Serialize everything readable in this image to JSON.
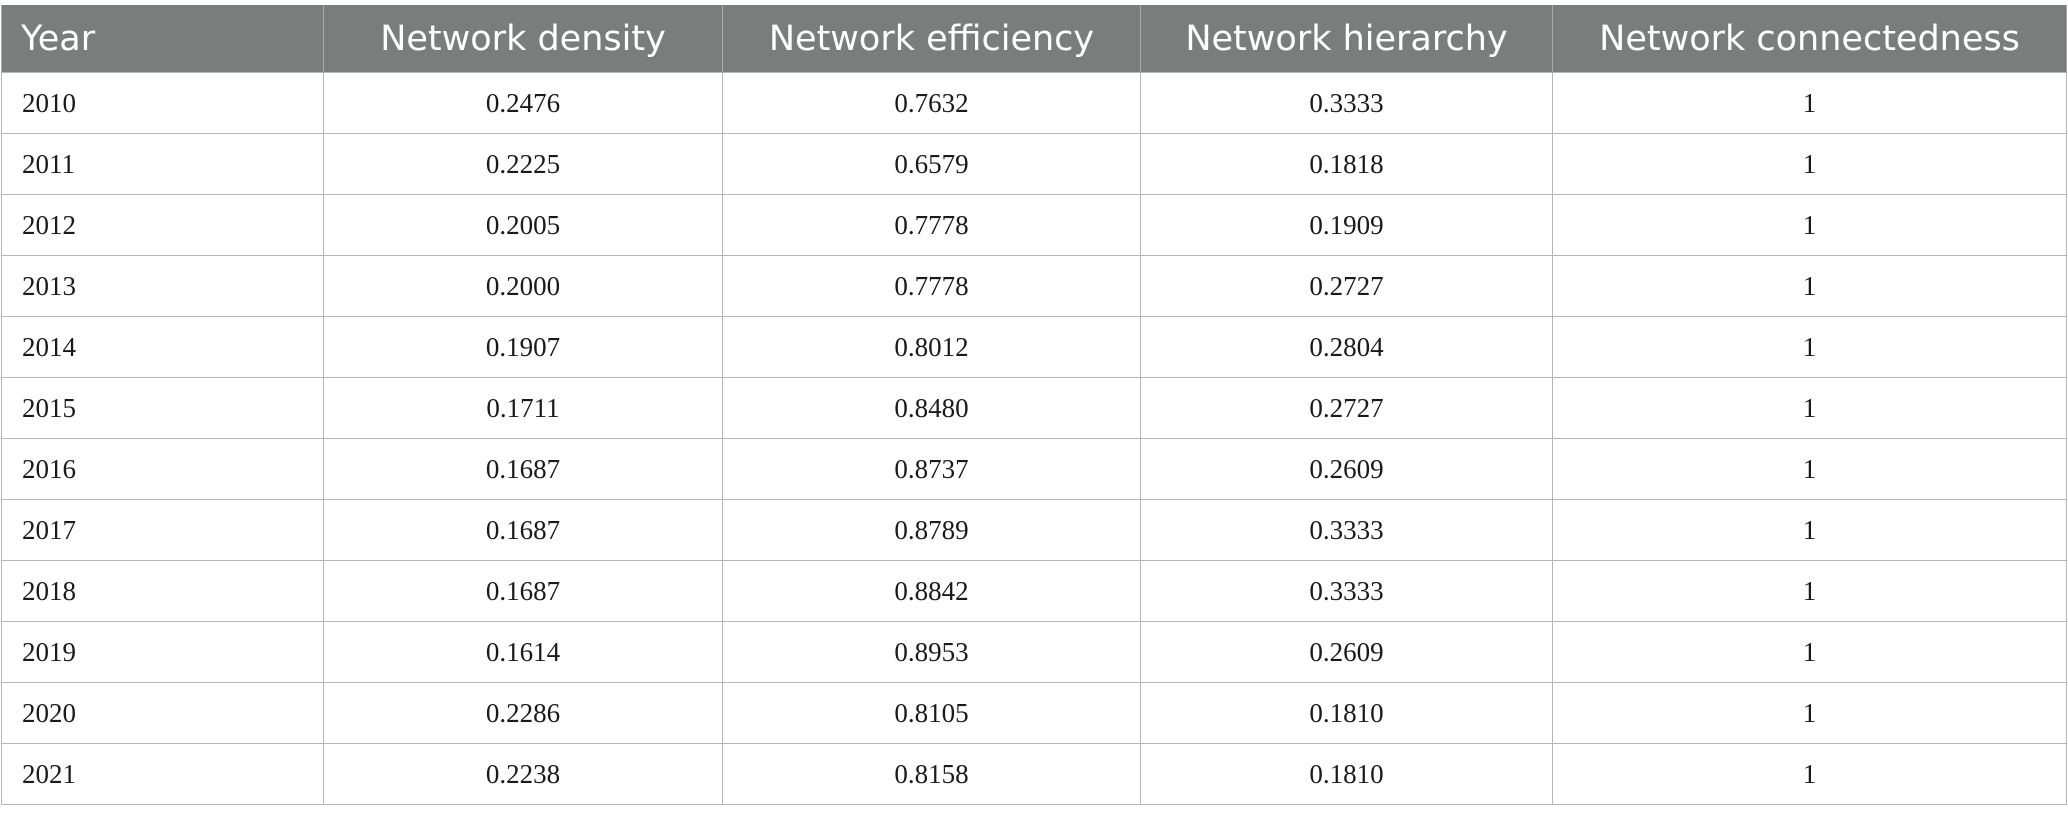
{
  "table": {
    "columns": [
      "Year",
      "Network density",
      "Network efficiency",
      "Network hierarchy",
      "Network connectedness"
    ],
    "rows": [
      [
        "2010",
        "0.2476",
        "0.7632",
        "0.3333",
        "1"
      ],
      [
        "2011",
        "0.2225",
        "0.6579",
        "0.1818",
        "1"
      ],
      [
        "2012",
        "0.2005",
        "0.7778",
        "0.1909",
        "1"
      ],
      [
        "2013",
        "0.2000",
        "0.7778",
        "0.2727",
        "1"
      ],
      [
        "2014",
        "0.1907",
        "0.8012",
        "0.2804",
        "1"
      ],
      [
        "2015",
        "0.1711",
        "0.8480",
        "0.2727",
        "1"
      ],
      [
        "2016",
        "0.1687",
        "0.8737",
        "0.2609",
        "1"
      ],
      [
        "2017",
        "0.1687",
        "0.8789",
        "0.3333",
        "1"
      ],
      [
        "2018",
        "0.1687",
        "0.8842",
        "0.3333",
        "1"
      ],
      [
        "2019",
        "0.1614",
        "0.8953",
        "0.2609",
        "1"
      ],
      [
        "2020",
        "0.2286",
        "0.8105",
        "0.1810",
        "1"
      ],
      [
        "2021",
        "0.2238",
        "0.8158",
        "0.1810",
        "1"
      ]
    ]
  },
  "colors": {
    "header_background": "#7b7d7c",
    "header_text": "#ffffff",
    "grid_line": "#b5b5b5",
    "cell_text": "#1a1a1a"
  }
}
